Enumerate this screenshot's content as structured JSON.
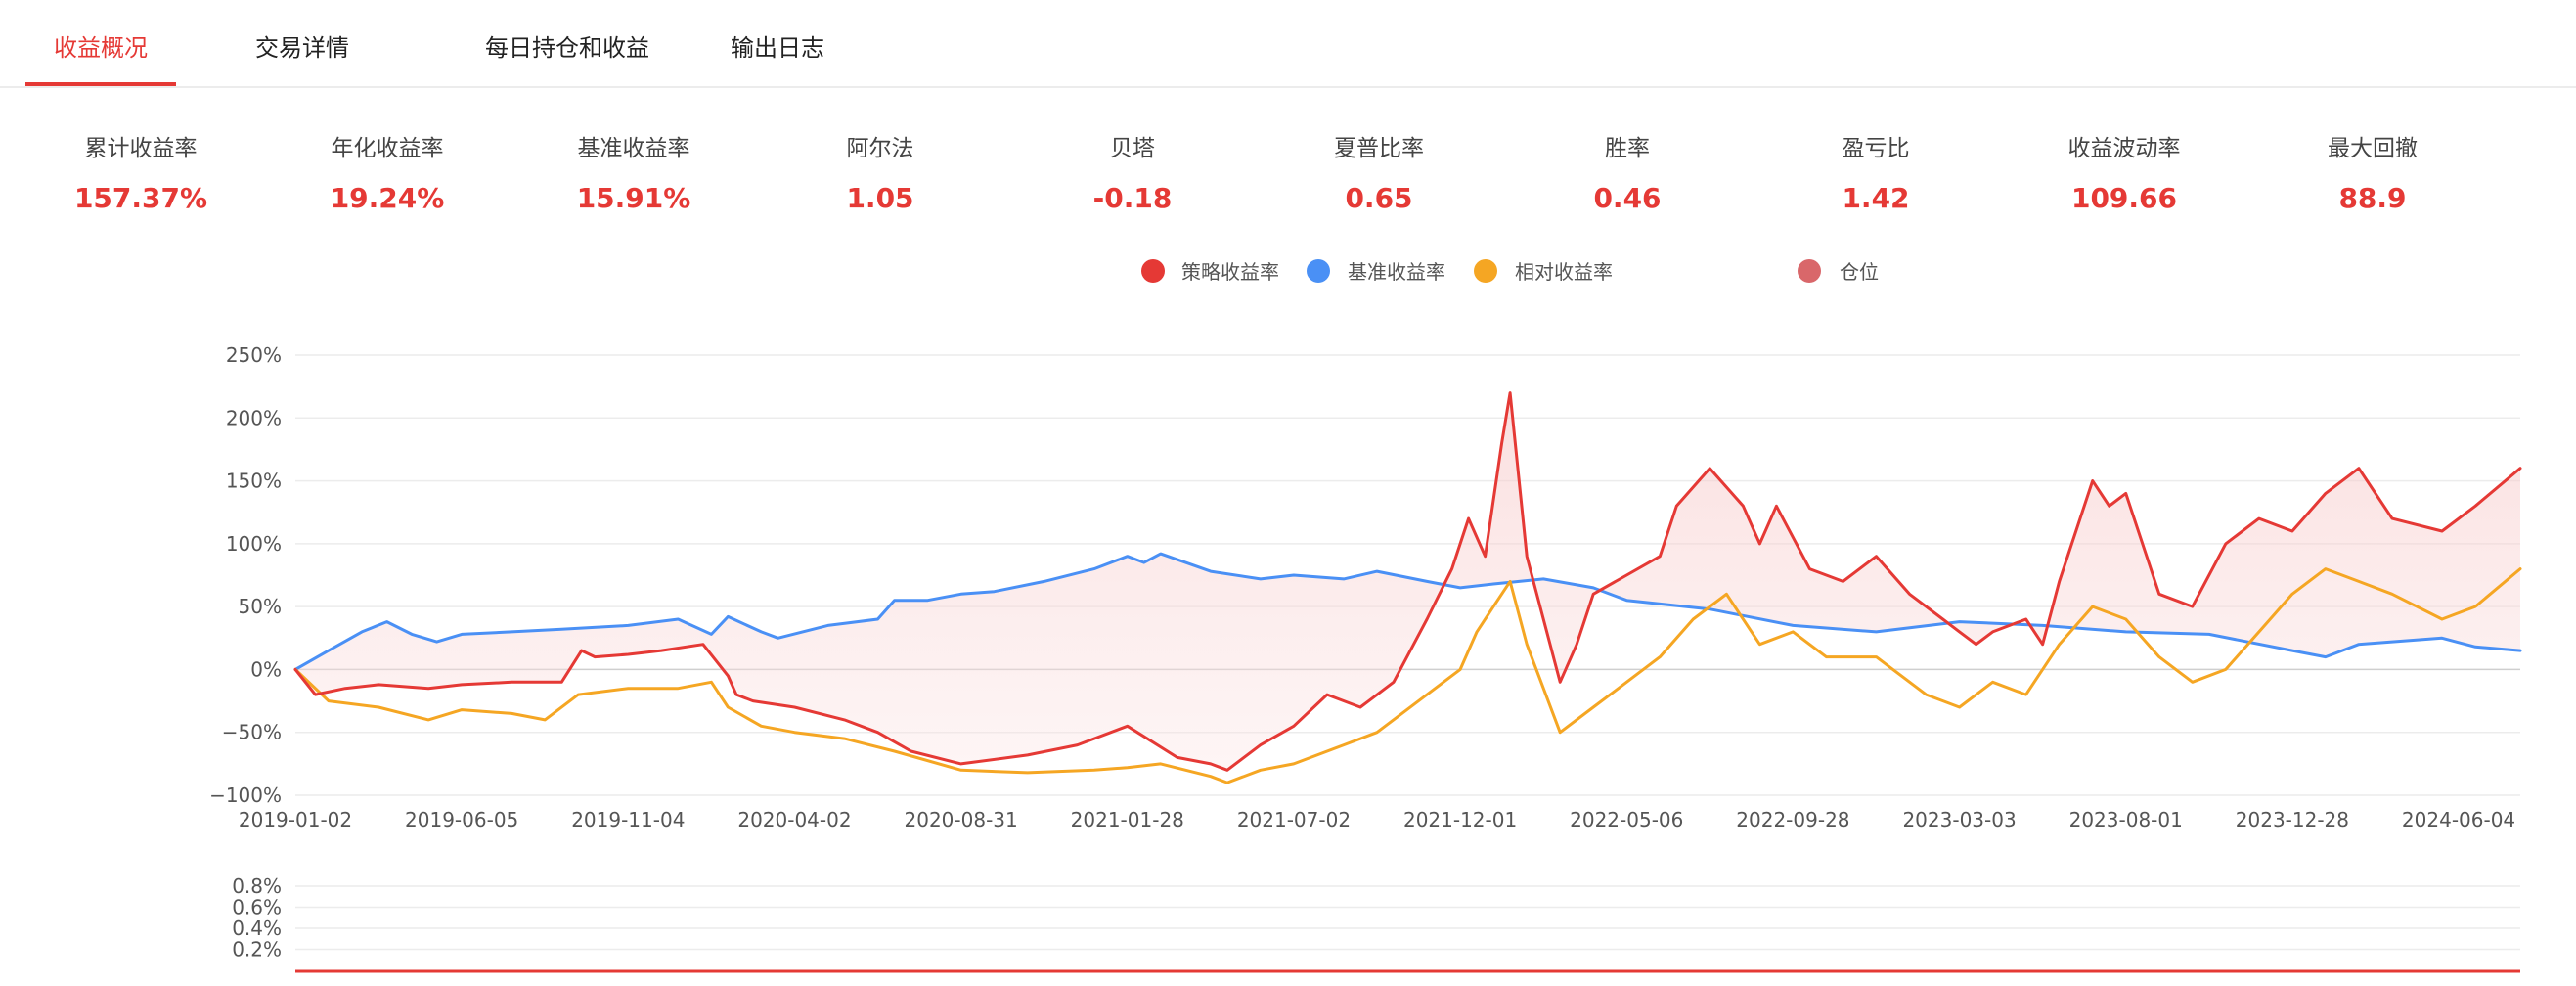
{
  "tabs": [
    {
      "label": "收益概况",
      "active": true
    },
    {
      "label": "交易详情",
      "active": false
    },
    {
      "label": "每日持仓和收益",
      "active": false
    },
    {
      "label": "输出日志",
      "active": false
    }
  ],
  "stats": [
    {
      "label": "累计收益率",
      "value": "157.37%"
    },
    {
      "label": "年化收益率",
      "value": "19.24%"
    },
    {
      "label": "基准收益率",
      "value": "15.91%"
    },
    {
      "label": "阿尔法",
      "value": "1.05"
    },
    {
      "label": "贝塔",
      "value": "-0.18"
    },
    {
      "label": "夏普比率",
      "value": "0.65"
    },
    {
      "label": "胜率",
      "value": "0.46"
    },
    {
      "label": "盈亏比",
      "value": "1.42"
    },
    {
      "label": "收益波动率",
      "value": "109.66"
    },
    {
      "label": "最大回撤",
      "value": "88.9"
    }
  ],
  "colors": {
    "accent": "#e53935",
    "strategy": "#e53935",
    "benchmark": "#4a90f5",
    "relative": "#f5a623",
    "position": "#d9676a"
  },
  "chart_data": [
    {
      "type": "line",
      "legend_placement": "top-center",
      "grid": true,
      "xticks": [
        "2019-01-02",
        "2019-06-05",
        "2019-11-04",
        "2020-04-02",
        "2020-08-31",
        "2021-01-28",
        "2021-07-02",
        "2021-12-01",
        "2022-05-06",
        "2022-09-28",
        "2023-03-03",
        "2023-08-01",
        "2023-12-28",
        "2024-06-04"
      ],
      "yticks": [
        "250%",
        "200%",
        "150%",
        "100%",
        "50%",
        "0%",
        "−50%",
        "−100%"
      ],
      "ylim": [
        -100,
        250
      ],
      "x_index_range": [
        0,
        13.37
      ],
      "series": [
        {
          "name": "策略收益率",
          "color_key": "strategy",
          "x": [
            0,
            0.12,
            0.3,
            0.5,
            0.8,
            1.0,
            1.3,
            1.6,
            1.72,
            1.8,
            2.0,
            2.2,
            2.45,
            2.6,
            2.65,
            2.75,
            3.0,
            3.3,
            3.5,
            3.7,
            4.0,
            4.4,
            4.7,
            5.0,
            5.3,
            5.5,
            5.6,
            5.7,
            5.8,
            6.0,
            6.2,
            6.4,
            6.6,
            6.8,
            6.95,
            7.05,
            7.15,
            7.25,
            7.3,
            7.4,
            7.6,
            7.7,
            7.8,
            8.0,
            8.2,
            8.3,
            8.5,
            8.7,
            8.8,
            8.9,
            9.1,
            9.3,
            9.5,
            9.7,
            9.9,
            10.0,
            10.1,
            10.2,
            10.4,
            10.5,
            10.6,
            10.8,
            10.9,
            11.0,
            11.2,
            11.4,
            11.6,
            11.8,
            12.0,
            12.2,
            12.4,
            12.6,
            12.9,
            13.1,
            13.37
          ],
          "y": [
            0,
            -20,
            -15,
            -12,
            -15,
            -12,
            -10,
            -10,
            15,
            10,
            12,
            15,
            20,
            -5,
            -20,
            -25,
            -30,
            -40,
            -50,
            -65,
            -75,
            -68,
            -60,
            -45,
            -70,
            -75,
            -80,
            -70,
            -60,
            -45,
            -20,
            -30,
            -10,
            40,
            80,
            120,
            90,
            180,
            220,
            90,
            -10,
            20,
            60,
            75,
            90,
            130,
            160,
            130,
            100,
            130,
            80,
            70,
            90,
            60,
            40,
            30,
            20,
            30,
            40,
            20,
            70,
            150,
            130,
            140,
            60,
            50,
            100,
            120,
            110,
            140,
            160,
            120,
            110,
            130,
            160
          ]
        },
        {
          "name": "基准收益率",
          "color_key": "benchmark",
          "x": [
            0,
            0.2,
            0.4,
            0.55,
            0.7,
            0.85,
            1.0,
            1.3,
            1.6,
            2.0,
            2.3,
            2.5,
            2.6,
            2.8,
            2.9,
            3.2,
            3.5,
            3.6,
            3.8,
            4.0,
            4.2,
            4.5,
            4.8,
            5.0,
            5.1,
            5.2,
            5.5,
            5.8,
            6.0,
            6.3,
            6.5,
            6.8,
            7.0,
            7.2,
            7.5,
            7.8,
            8.0,
            8.5,
            9.0,
            9.5,
            10.0,
            10.5,
            11.0,
            11.5,
            12.0,
            12.2,
            12.4,
            12.6,
            12.9,
            13.1,
            13.37
          ],
          "y": [
            0,
            15,
            30,
            38,
            28,
            22,
            28,
            30,
            32,
            35,
            40,
            28,
            42,
            30,
            25,
            35,
            40,
            55,
            55,
            60,
            62,
            70,
            80,
            90,
            85,
            92,
            78,
            72,
            75,
            72,
            78,
            70,
            65,
            68,
            72,
            65,
            55,
            48,
            35,
            30,
            38,
            35,
            30,
            28,
            15,
            10,
            20,
            22,
            25,
            18,
            15
          ]
        },
        {
          "name": "相对收益率",
          "color_key": "relative",
          "x": [
            0,
            0.2,
            0.5,
            0.8,
            1.0,
            1.3,
            1.5,
            1.7,
            2.0,
            2.3,
            2.5,
            2.6,
            2.8,
            3.0,
            3.3,
            3.6,
            4.0,
            4.4,
            4.8,
            5.0,
            5.2,
            5.5,
            5.6,
            5.8,
            6.0,
            6.3,
            6.5,
            6.8,
            7.0,
            7.1,
            7.2,
            7.3,
            7.4,
            7.6,
            7.8,
            8.0,
            8.2,
            8.4,
            8.6,
            8.8,
            9.0,
            9.2,
            9.5,
            9.8,
            10.0,
            10.2,
            10.4,
            10.6,
            10.8,
            11.0,
            11.2,
            11.4,
            11.6,
            11.8,
            12.0,
            12.2,
            12.4,
            12.6,
            12.9,
            13.1,
            13.37
          ],
          "y": [
            0,
            -25,
            -30,
            -40,
            -32,
            -35,
            -40,
            -20,
            -15,
            -15,
            -10,
            -30,
            -45,
            -50,
            -55,
            -65,
            -80,
            -82,
            -80,
            -78,
            -75,
            -85,
            -90,
            -80,
            -75,
            -60,
            -50,
            -20,
            0,
            30,
            50,
            70,
            20,
            -50,
            -30,
            -10,
            10,
            40,
            60,
            20,
            30,
            10,
            10,
            -20,
            -30,
            -10,
            -20,
            20,
            50,
            40,
            10,
            -10,
            0,
            30,
            60,
            80,
            70,
            60,
            40,
            50,
            80
          ]
        }
      ]
    },
    {
      "type": "area",
      "yticks": [
        "0.8%",
        "0.6%",
        "0.4%",
        "0.2%"
      ],
      "series": [
        {
          "name": "仓位",
          "color_key": "position",
          "values": [
            0
          ]
        }
      ]
    }
  ]
}
